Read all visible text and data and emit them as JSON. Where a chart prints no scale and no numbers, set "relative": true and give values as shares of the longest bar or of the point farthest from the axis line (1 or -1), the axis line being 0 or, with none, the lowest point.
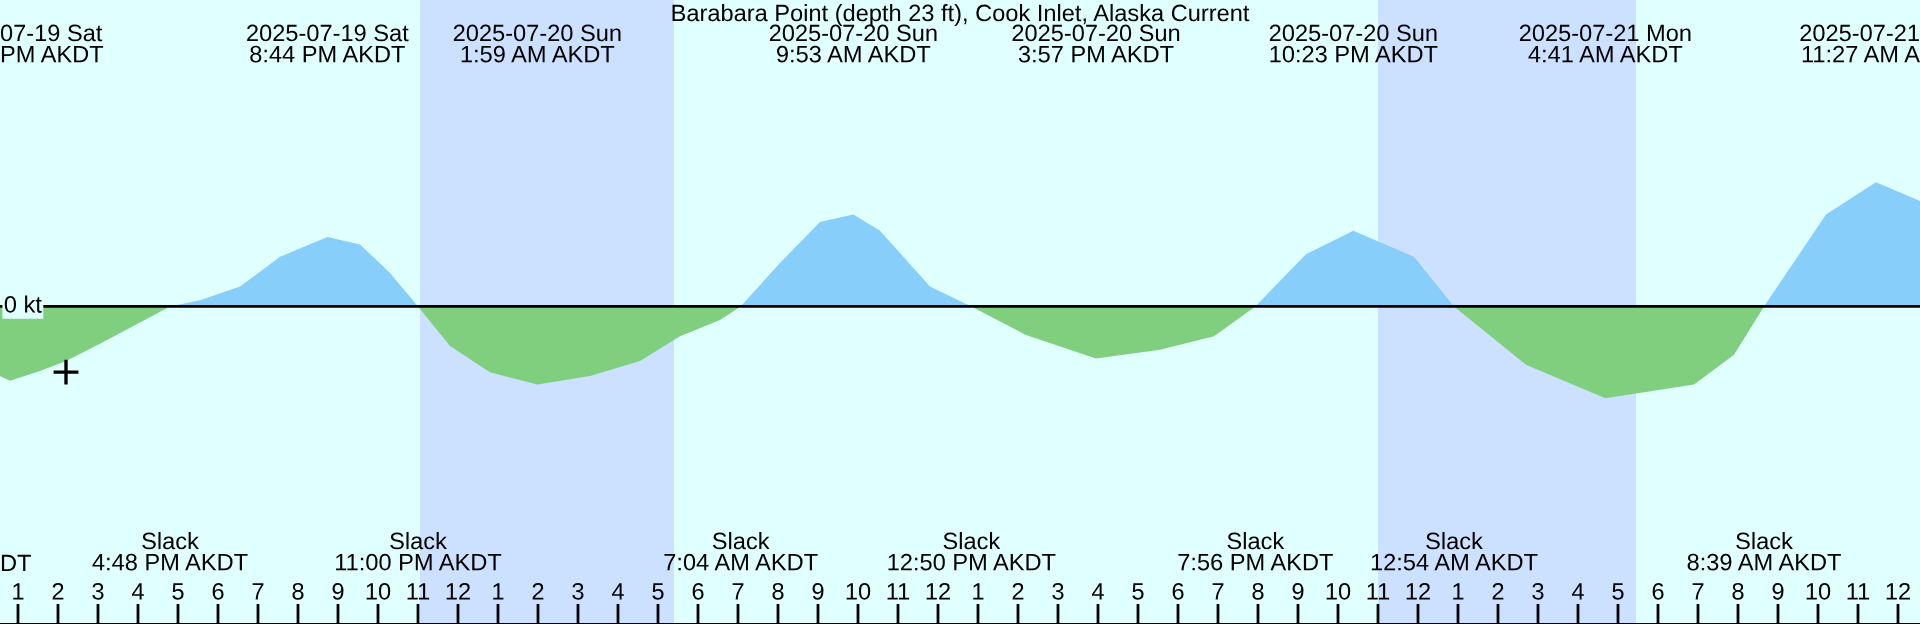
{
  "chart_data": {
    "type": "area",
    "title": "Barabara Point (depth 23 ft), Cook Inlet, Alaska Current",
    "relative": true,
    "xlim": [
      "2025-07-19T12:33",
      "2025-07-21T12:33"
    ],
    "xticks": [
      {
        "value": "2025-07-19T13:00",
        "label": "1"
      },
      {
        "value": "2025-07-19T14:00",
        "label": "2"
      },
      {
        "value": "2025-07-19T15:00",
        "label": "3"
      },
      {
        "value": "2025-07-19T16:00",
        "label": "4"
      },
      {
        "value": "2025-07-19T17:00",
        "label": "5"
      },
      {
        "value": "2025-07-19T18:00",
        "label": "6"
      },
      {
        "value": "2025-07-19T19:00",
        "label": "7"
      },
      {
        "value": "2025-07-19T20:00",
        "label": "8"
      },
      {
        "value": "2025-07-19T21:00",
        "label": "9"
      },
      {
        "value": "2025-07-19T22:00",
        "label": "10"
      },
      {
        "value": "2025-07-19T23:00",
        "label": "11"
      },
      {
        "value": "2025-07-20T00:00",
        "label": "12"
      },
      {
        "value": "2025-07-20T01:00",
        "label": "1"
      },
      {
        "value": "2025-07-20T02:00",
        "label": "2"
      },
      {
        "value": "2025-07-20T03:00",
        "label": "3"
      },
      {
        "value": "2025-07-20T04:00",
        "label": "4"
      },
      {
        "value": "2025-07-20T05:00",
        "label": "5"
      },
      {
        "value": "2025-07-20T06:00",
        "label": "6"
      },
      {
        "value": "2025-07-20T07:00",
        "label": "7"
      },
      {
        "value": "2025-07-20T08:00",
        "label": "8"
      },
      {
        "value": "2025-07-20T09:00",
        "label": "9"
      },
      {
        "value": "2025-07-20T10:00",
        "label": "10"
      },
      {
        "value": "2025-07-20T11:00",
        "label": "11"
      },
      {
        "value": "2025-07-20T12:00",
        "label": "12"
      },
      {
        "value": "2025-07-20T13:00",
        "label": "1"
      },
      {
        "value": "2025-07-20T14:00",
        "label": "2"
      },
      {
        "value": "2025-07-20T15:00",
        "label": "3"
      },
      {
        "value": "2025-07-20T16:00",
        "label": "4"
      },
      {
        "value": "2025-07-20T17:00",
        "label": "5"
      },
      {
        "value": "2025-07-20T18:00",
        "label": "6"
      },
      {
        "value": "2025-07-20T19:00",
        "label": "7"
      },
      {
        "value": "2025-07-20T20:00",
        "label": "8"
      },
      {
        "value": "2025-07-20T21:00",
        "label": "9"
      },
      {
        "value": "2025-07-20T22:00",
        "label": "10"
      },
      {
        "value": "2025-07-20T23:00",
        "label": "11"
      },
      {
        "value": "2025-07-21T00:00",
        "label": "12"
      },
      {
        "value": "2025-07-21T01:00",
        "label": "1"
      },
      {
        "value": "2025-07-21T02:00",
        "label": "2"
      },
      {
        "value": "2025-07-21T03:00",
        "label": "3"
      },
      {
        "value": "2025-07-21T04:00",
        "label": "4"
      },
      {
        "value": "2025-07-21T05:00",
        "label": "5"
      },
      {
        "value": "2025-07-21T06:00",
        "label": "6"
      },
      {
        "value": "2025-07-21T07:00",
        "label": "7"
      },
      {
        "value": "2025-07-21T08:00",
        "label": "8"
      },
      {
        "value": "2025-07-21T09:00",
        "label": "9"
      },
      {
        "value": "2025-07-21T10:00",
        "label": "10"
      },
      {
        "value": "2025-07-21T11:00",
        "label": "11"
      },
      {
        "value": "2025-07-21T12:00",
        "label": "12"
      }
    ],
    "series": [
      {
        "color": "#87cefa",
        "x": [
          "2025-07-19T16:48",
          "2025-07-19T17:33",
          "2025-07-19T18:33",
          "2025-07-19T19:33",
          "2025-07-19T20:44",
          "2025-07-19T21:33",
          "2025-07-19T22:18",
          "2025-07-19T23:00",
          "2025-07-20T07:04",
          "2025-07-20T08:03",
          "2025-07-20T09:03",
          "2025-07-20T09:53",
          "2025-07-20T10:33",
          "2025-07-20T11:48",
          "2025-07-20T12:50",
          "2025-07-20T19:56",
          "2025-07-20T21:12",
          "2025-07-20T22:23",
          "2025-07-20T23:54",
          "2025-07-21T00:54",
          "2025-07-21T08:39",
          "2025-07-21T10:12",
          "2025-07-21T11:27",
          "2025-07-21T12:33"
        ],
        "values": [
          0,
          0.05,
          0.16,
          0.4,
          0.56,
          0.5,
          0.27,
          0,
          0,
          0.35,
          0.68,
          0.74,
          0.61,
          0.16,
          0,
          0,
          0.42,
          0.61,
          0.4,
          0,
          0,
          0.74,
          1,
          0.85
        ]
      },
      {
        "color": "#7fcf7f",
        "x": [
          "2025-07-19T12:33",
          "2025-07-19T12:48",
          "2025-07-19T13:33",
          "2025-07-19T14:12",
          "2025-07-19T15:03",
          "2025-07-19T16:03",
          "2025-07-19T16:48",
          "2025-07-19T23:00",
          "2025-07-19T23:48",
          "2025-07-20T00:48",
          "2025-07-20T01:59",
          "2025-07-20T03:18",
          "2025-07-20T04:33",
          "2025-07-20T05:33",
          "2025-07-20T06:33",
          "2025-07-20T07:04",
          "2025-07-20T12:50",
          "2025-07-20T14:12",
          "2025-07-20T15:57",
          "2025-07-20T17:33",
          "2025-07-20T18:54",
          "2025-07-20T19:56",
          "2025-07-21T00:54",
          "2025-07-21T02:42",
          "2025-07-21T04:41",
          "2025-07-21T06:54",
          "2025-07-21T07:54",
          "2025-07-21T08:39"
        ],
        "values": [
          -0.56,
          -0.6,
          -0.52,
          -0.44,
          -0.3,
          -0.13,
          0,
          0,
          -0.32,
          -0.53,
          -0.63,
          -0.56,
          -0.44,
          -0.24,
          -0.11,
          0,
          0,
          -0.23,
          -0.42,
          -0.35,
          -0.24,
          0,
          0,
          -0.47,
          -0.74,
          -0.63,
          -0.39,
          0
        ]
      },
      {
        "type": "scatter",
        "color": "#000000",
        "marker": "cross",
        "x": [
          "2025-07-19T14:12"
        ],
        "values": [
          -0.53
        ]
      }
    ],
    "bands": [
      {
        "axis": "x",
        "from": "2025-07-19T23:03",
        "to": "2025-07-20T05:24",
        "color": "#cce0ff"
      },
      {
        "axis": "x",
        "from": "2025-07-20T23:00",
        "to": "2025-07-21T05:27",
        "color": "#cce0ff"
      }
    ],
    "annotations": [
      "DT",
      "0 kt",
      "07-19 Sat\nPM AKDT",
      "2025-07-19 Sat\n8:44 PM AKDT",
      "2025-07-20 Sun\n1:59 AM AKDT",
      "2025-07-20 Sun\n9:53 AM AKDT",
      "2025-07-20 Sun\n3:57 PM AKDT",
      "2025-07-20 Sun\n10:23 PM AKDT",
      "2025-07-21 Mon\n4:41 AM AKDT",
      "2025-07-21\n11:27 AM A",
      "Slack\n4:48 PM AKDT",
      "Slack\n11:00 PM AKDT",
      "Slack\n7:04 AM AKDT",
      "Slack\n12:50 PM AKDT",
      "Slack\n7:56 PM AKDT",
      "Slack\n12:54 AM AKDT",
      "Slack\n8:39 AM AKDT"
    ]
  }
}
